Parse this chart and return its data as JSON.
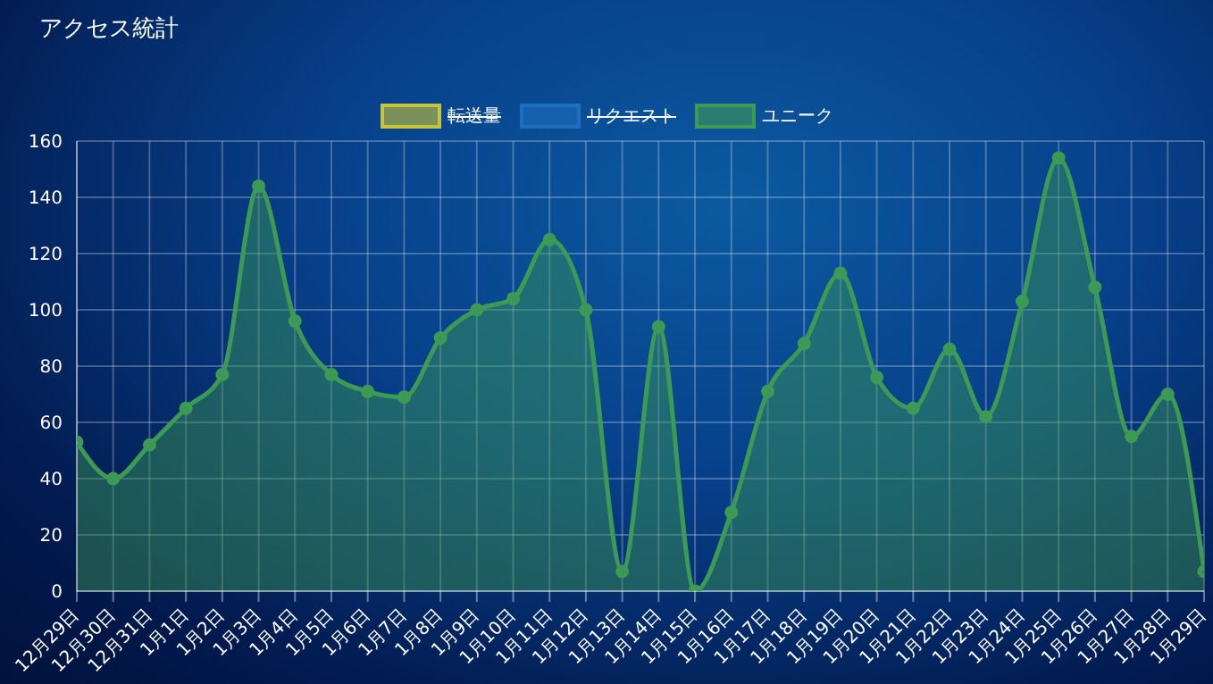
{
  "chart_data": {
    "type": "area",
    "title": "アクセス統計",
    "categories": [
      "12月29日",
      "12月30日",
      "12月31日",
      "1月1日",
      "1月2日",
      "1月3日",
      "1月4日",
      "1月5日",
      "1月6日",
      "1月7日",
      "1月8日",
      "1月9日",
      "1月10日",
      "1月11日",
      "1月12日",
      "1月13日",
      "1月14日",
      "1月15日",
      "1月16日",
      "1月17日",
      "1月18日",
      "1月19日",
      "1月20日",
      "1月21日",
      "1月22日",
      "1月23日",
      "1月24日",
      "1月25日",
      "1月26日",
      "1月27日",
      "1月28日",
      "1月29日"
    ],
    "series": [
      {
        "name": "転送量",
        "color": "#c8c43a",
        "values": [
          null,
          null,
          null,
          null,
          null,
          null,
          null,
          null,
          null,
          null,
          null,
          null,
          null,
          null,
          null,
          null,
          null,
          null,
          null,
          null,
          null,
          null,
          null,
          null,
          null,
          null,
          null,
          null,
          null,
          null,
          null,
          null
        ]
      },
      {
        "name": "リクエスト",
        "color": "#1f6fc0",
        "values": [
          null,
          null,
          null,
          null,
          null,
          null,
          null,
          null,
          null,
          null,
          null,
          null,
          null,
          null,
          null,
          null,
          null,
          null,
          null,
          null,
          null,
          null,
          null,
          null,
          null,
          null,
          null,
          null,
          null,
          null,
          null,
          null
        ]
      },
      {
        "name": "ユニーク",
        "color": "#3c9a55",
        "values": [
          53,
          40,
          52,
          65,
          77,
          144,
          96,
          77,
          71,
          69,
          90,
          100,
          104,
          125,
          100,
          7,
          94,
          0,
          28,
          71,
          88,
          113,
          76,
          65,
          86,
          62,
          103,
          154,
          108,
          55,
          70,
          7
        ]
      }
    ],
    "ylim": [
      0,
      160
    ],
    "yticks": [
      0,
      20,
      40,
      60,
      80,
      100,
      120,
      140,
      160
    ],
    "grid": true,
    "legend": "top",
    "marker": "circle"
  }
}
